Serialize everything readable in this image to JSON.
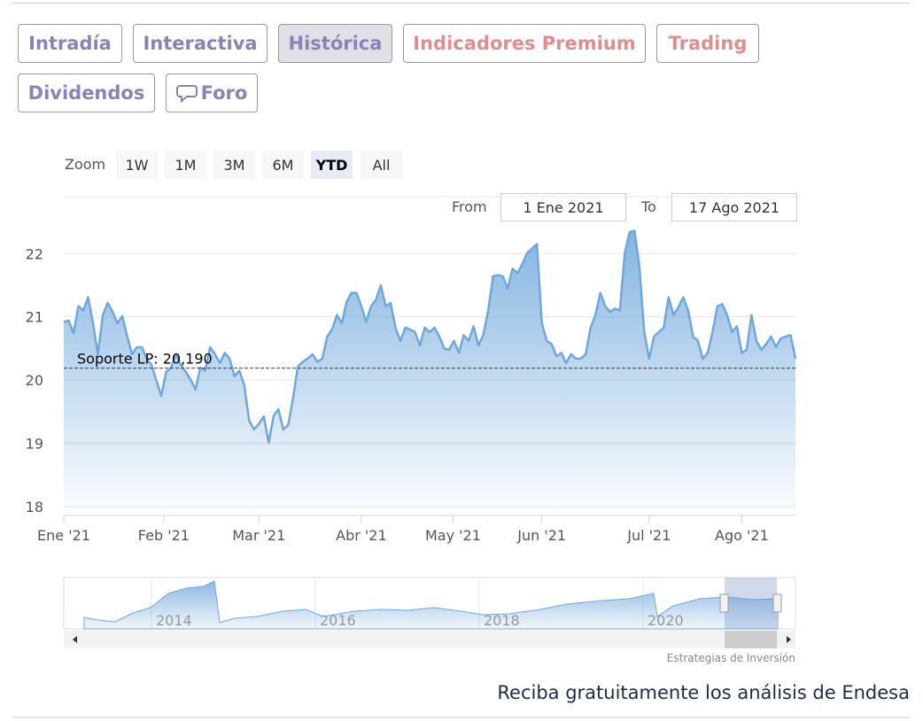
{
  "tabs": [
    {
      "label": "Intradía",
      "color": "#8b82b8"
    },
    {
      "label": "Interactiva",
      "color": "#8b82b8"
    },
    {
      "label": "Histórica",
      "color": "#8b82b8"
    },
    {
      "label": "Indicadores Premium",
      "color": "#e08d8d"
    },
    {
      "label": "Trading",
      "color": "#e08d8d"
    },
    {
      "label": "Dividendos",
      "color": "#8b82b8"
    },
    {
      "label": "Foro",
      "color": "#8b82b8"
    }
  ],
  "selected_tab": 2,
  "zoom": {
    "label": "Zoom",
    "buttons": [
      "1W",
      "1M",
      "3M",
      "6M",
      "YTD",
      "All"
    ],
    "selected": 4
  },
  "range": {
    "from_label": "From",
    "from": "1 Ene 2021",
    "to_label": "To",
    "to": "17 Ago 2021"
  },
  "chart_data": {
    "type": "area",
    "color": "#6fa8dc",
    "values": [
      20.92,
      20.94,
      20.74,
      21.17,
      21.1,
      21.31,
      20.9,
      20.41,
      21.03,
      21.22,
      21.08,
      20.9,
      21.01,
      20.69,
      20.41,
      20.52,
      20.52,
      20.34,
      20.24,
      19.99,
      19.75,
      20.13,
      20.2,
      20.41,
      20.24,
      20.13,
      20.01,
      19.85,
      20.2,
      20.15,
      20.52,
      20.41,
      20.27,
      20.43,
      20.34,
      20.06,
      20.15,
      19.92,
      19.36,
      19.22,
      19.31,
      19.43,
      19.01,
      19.43,
      19.54,
      19.22,
      19.29,
      19.71,
      20.22,
      20.29,
      20.34,
      20.41,
      20.29,
      20.34,
      20.69,
      20.8,
      21.03,
      20.9,
      21.24,
      21.38,
      21.38,
      21.17,
      20.92,
      21.17,
      21.27,
      21.5,
      21.17,
      21.22,
      20.83,
      20.62,
      20.83,
      20.8,
      20.76,
      20.55,
      20.83,
      20.76,
      20.83,
      20.69,
      20.5,
      20.48,
      20.62,
      20.43,
      20.71,
      20.62,
      20.85,
      20.55,
      20.71,
      21.1,
      21.64,
      21.66,
      21.64,
      21.45,
      21.76,
      21.69,
      21.83,
      22.01,
      22.08,
      22.15,
      20.9,
      20.62,
      20.57,
      20.38,
      20.43,
      20.27,
      20.41,
      20.34,
      20.34,
      20.41,
      20.83,
      21.03,
      21.38,
      21.17,
      21.08,
      21.13,
      21.1,
      22.01,
      22.34,
      22.36,
      21.8,
      20.76,
      20.34,
      20.69,
      20.76,
      20.83,
      21.31,
      21.03,
      21.15,
      21.31,
      21.1,
      20.69,
      20.62,
      20.34,
      20.43,
      20.76,
      21.17,
      21.2,
      21.03,
      20.76,
      20.85,
      20.43,
      20.48,
      21.03,
      20.62,
      20.48,
      20.57,
      20.69,
      20.52,
      20.66,
      20.69,
      20.71,
      20.34
    ],
    "xlim": [
      0,
      150
    ],
    "xticks": [
      {
        "value": 0,
        "label": "Ene '21"
      },
      {
        "value": 20.5,
        "label": "Feb '21"
      },
      {
        "value": 40,
        "label": "Mar '21"
      },
      {
        "value": 61,
        "label": "Abr '21"
      },
      {
        "value": 79.8,
        "label": "May '21"
      },
      {
        "value": 98,
        "label": "Jun '21"
      },
      {
        "value": 120,
        "label": "Jul '21"
      },
      {
        "value": 139,
        "label": "Ago '21"
      }
    ],
    "ylim": [
      17.86,
      22.9
    ],
    "yticks": [
      18,
      19,
      20,
      21,
      22
    ],
    "grid": true,
    "annotation": {
      "label": "Soporte LP: 20,190",
      "value": 20.19,
      "color": "#8b1a1a"
    }
  },
  "navigator": {
    "labels": [
      "2014",
      "2016",
      "2018",
      "2020"
    ]
  },
  "credit": "Estrategias de Inversión",
  "footer": "Reciba gratuitamente los análisis de Endesa"
}
